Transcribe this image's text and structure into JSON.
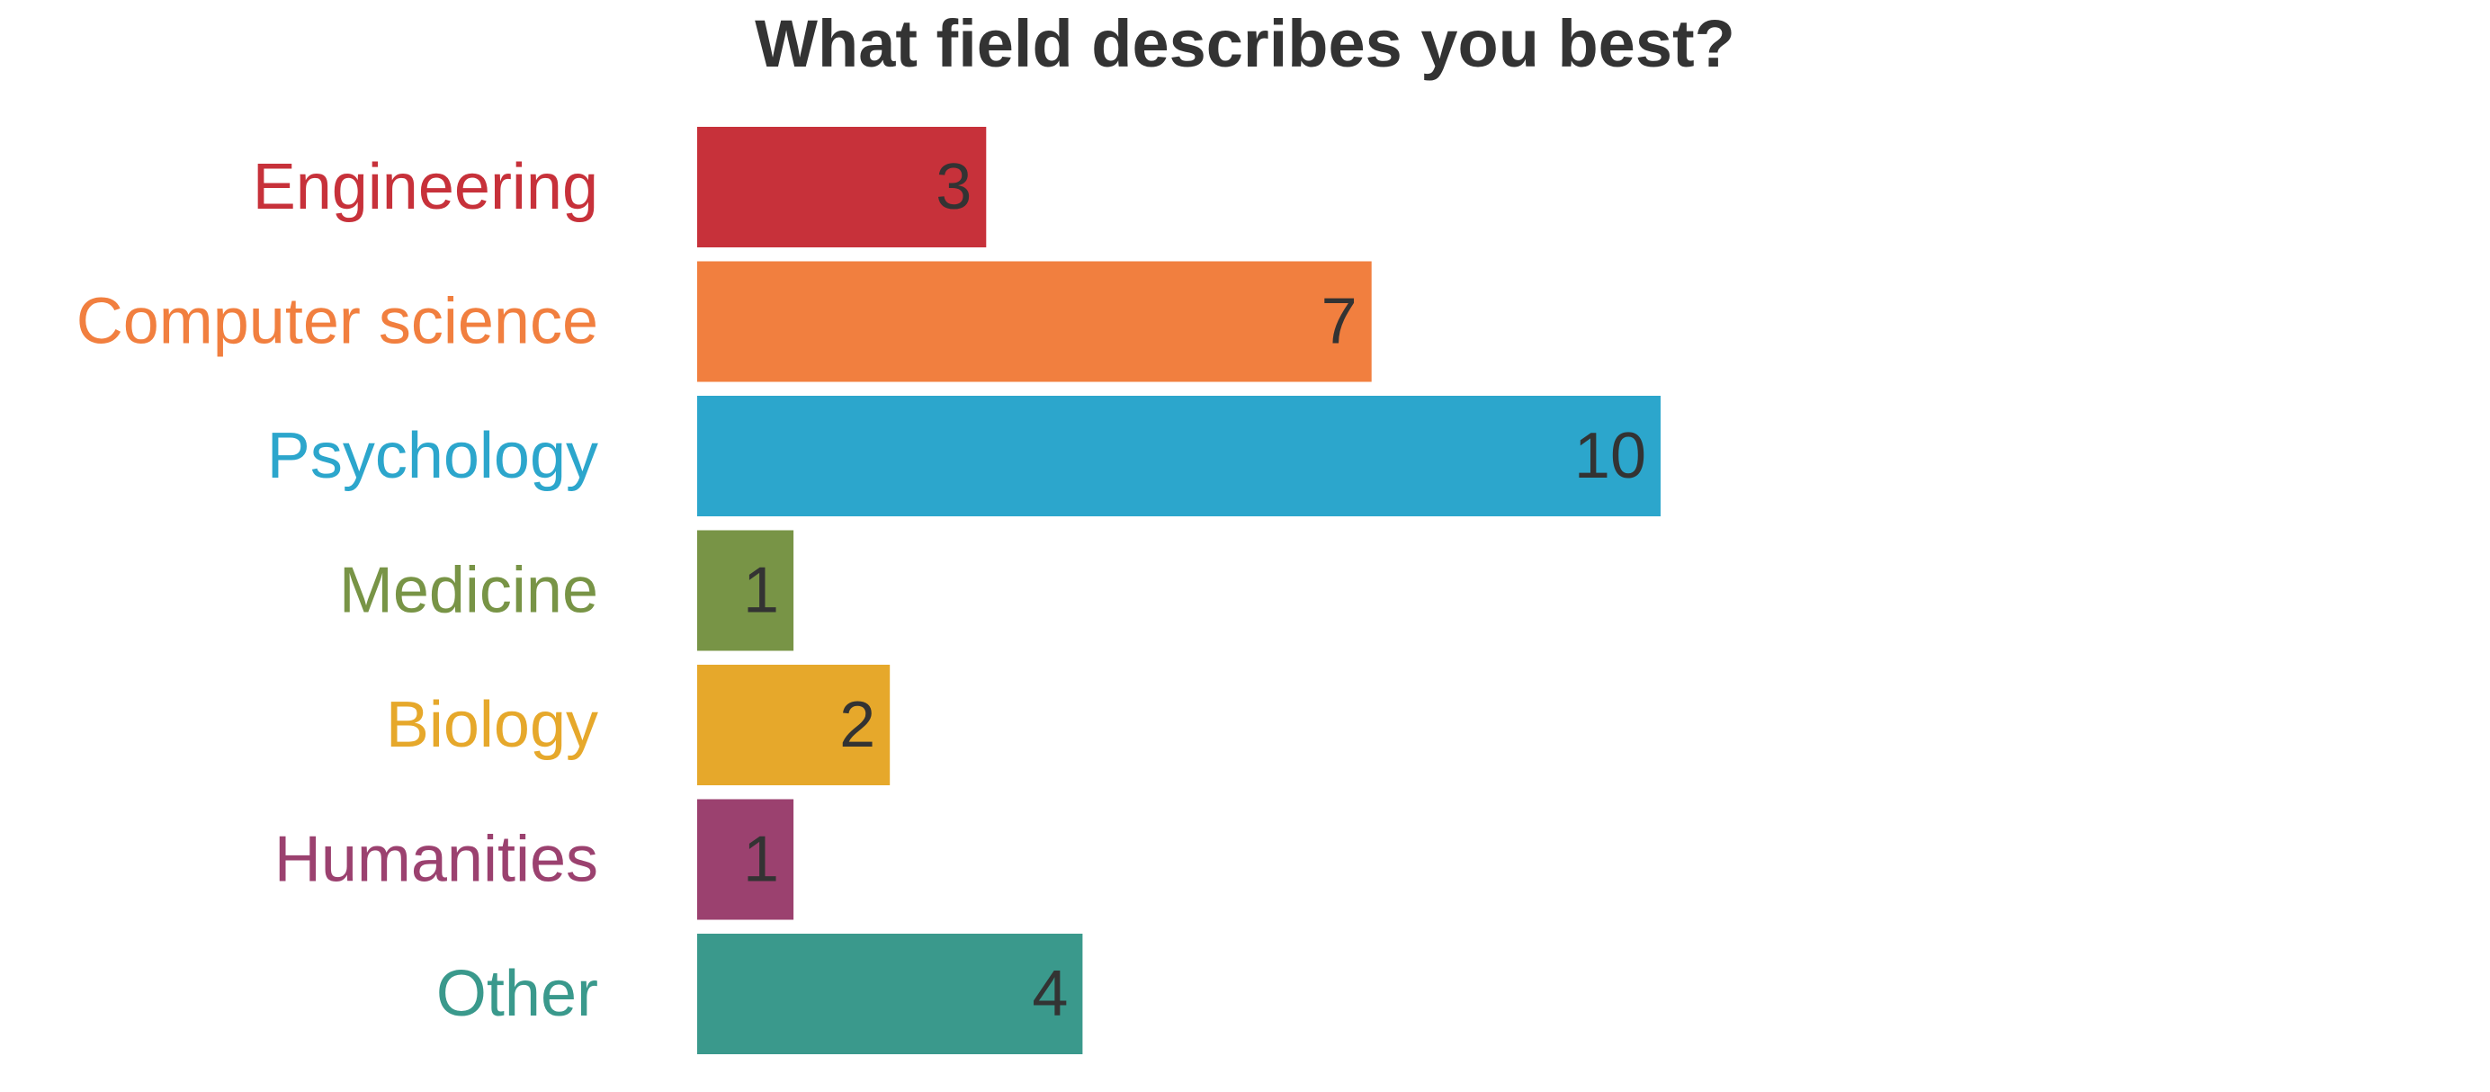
{
  "chart_data": {
    "type": "bar",
    "orientation": "horizontal",
    "title": "What field describes you best?",
    "xlabel": "",
    "ylabel": "",
    "categories": [
      "Engineering",
      "Computer science",
      "Psychology",
      "Medicine",
      "Biology",
      "Humanities",
      "Other"
    ],
    "values": [
      3,
      7,
      10,
      1,
      2,
      1,
      4
    ],
    "data_labels": [
      "3",
      "7",
      "10",
      "1",
      "2",
      "1",
      "4"
    ],
    "colors": [
      "#c7313a",
      "#f17f3f",
      "#2ca6cc",
      "#789446",
      "#e6a82b",
      "#9b416f",
      "#3a998c"
    ],
    "xlim": [
      0,
      10
    ],
    "grid": false,
    "legend": "none",
    "label_color": "#333333"
  }
}
